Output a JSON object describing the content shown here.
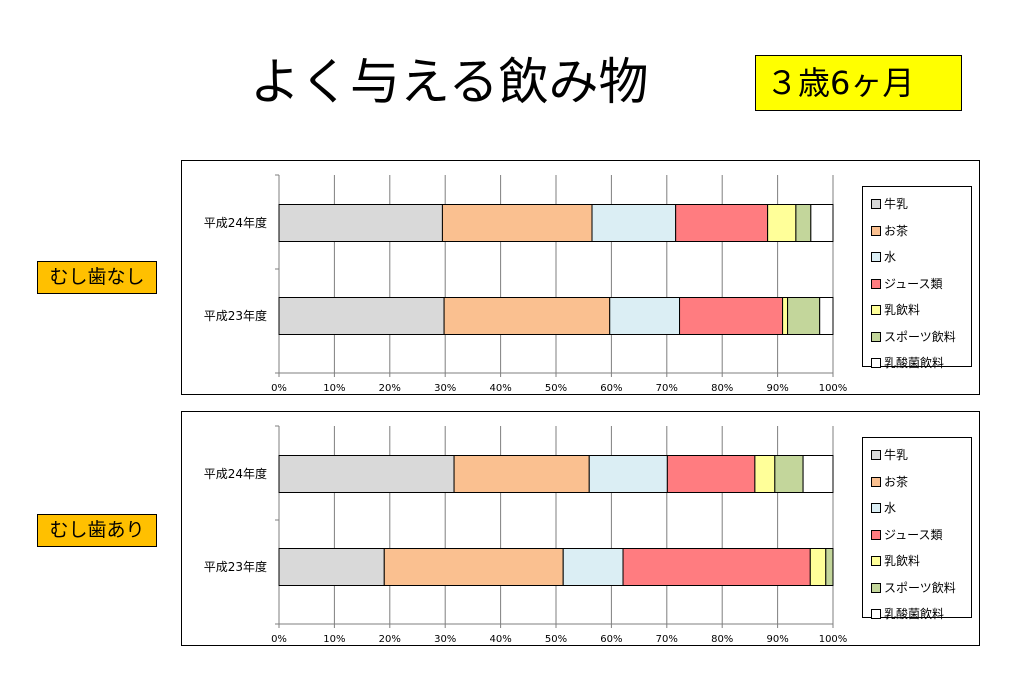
{
  "title": "よく与える飲み物",
  "age_badge": "３歳6ヶ月",
  "chart_data": [
    {
      "type": "bar",
      "stacked": true,
      "orientation": "horizontal",
      "group_label": "むし歯なし",
      "categories": [
        "平成24年度",
        "平成23年度"
      ],
      "xlim": [
        0,
        100
      ],
      "xticks": [
        "0%",
        "10%",
        "20%",
        "30%",
        "40%",
        "50%",
        "60%",
        "70%",
        "80%",
        "90%",
        "100%"
      ],
      "grid": true,
      "legend_position": "right",
      "series": [
        {
          "name": "牛乳",
          "color": "#d9d9d9",
          "values": [
            29.5,
            29.8
          ]
        },
        {
          "name": "お茶",
          "color": "#fac090",
          "values": [
            27.0,
            29.9
          ]
        },
        {
          "name": "水",
          "color": "#dbeef4",
          "values": [
            15.1,
            12.6
          ]
        },
        {
          "name": "ジュース類",
          "color": "#ff7c80",
          "values": [
            16.6,
            18.6
          ]
        },
        {
          "name": "乳飲料",
          "color": "#ffff99",
          "values": [
            5.1,
            0.9
          ]
        },
        {
          "name": "スポーツ飲料",
          "color": "#c3d69b",
          "values": [
            2.7,
            5.8
          ]
        },
        {
          "name": "乳酸菌飲料",
          "color": "#ffffff",
          "values": [
            4.0,
            2.4
          ]
        }
      ]
    },
    {
      "type": "bar",
      "stacked": true,
      "orientation": "horizontal",
      "group_label": "むし歯あり",
      "categories": [
        "平成24年度",
        "平成23年度"
      ],
      "xlim": [
        0,
        100
      ],
      "xticks": [
        "0%",
        "10%",
        "20%",
        "30%",
        "40%",
        "50%",
        "60%",
        "70%",
        "80%",
        "90%",
        "100%"
      ],
      "grid": true,
      "legend_position": "right",
      "series": [
        {
          "name": "牛乳",
          "color": "#d9d9d9",
          "values": [
            31.6,
            19.0
          ]
        },
        {
          "name": "お茶",
          "color": "#fac090",
          "values": [
            24.4,
            32.3
          ]
        },
        {
          "name": "水",
          "color": "#dbeef4",
          "values": [
            14.1,
            10.8
          ]
        },
        {
          "name": "ジュース類",
          "color": "#ff7c80",
          "values": [
            15.8,
            33.8
          ]
        },
        {
          "name": "乳飲料",
          "color": "#ffff99",
          "values": [
            3.6,
            2.8
          ]
        },
        {
          "name": "スポーツ飲料",
          "color": "#c3d69b",
          "values": [
            5.1,
            1.3
          ]
        },
        {
          "name": "乳酸菌飲料",
          "color": "#ffffff",
          "values": [
            5.4,
            0.0
          ]
        }
      ]
    }
  ]
}
